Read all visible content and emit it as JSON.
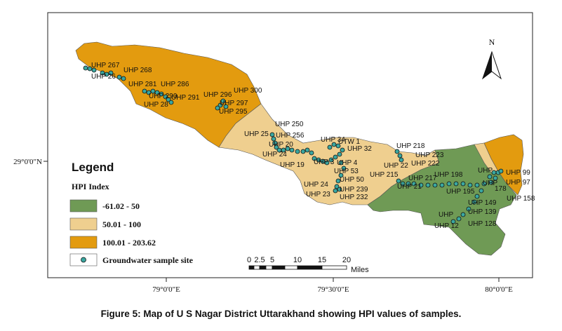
{
  "caption": "Figure 5: Map of U S Nagar District Uttarakhand showing HPI values of samples.",
  "axes": {
    "lat_label": "29°0'0\"N",
    "lon_labels": [
      "79°0'0\"E",
      "79°30'0\"E",
      "80°0'0\"E"
    ]
  },
  "north_arrow": {
    "label": "N"
  },
  "scale_bar": {
    "ticks": [
      "0",
      "2.5",
      "5",
      "10",
      "15",
      "20"
    ],
    "unit": "Miles"
  },
  "legend": {
    "title": "Legend",
    "subtitle": "HPI Index",
    "items": [
      {
        "label": "-61.02 - 50",
        "color": "#6f9a55"
      },
      {
        "label": "50.01 - 100",
        "color": "#efcf8f"
      },
      {
        "label": "100.01 - 203.62",
        "color": "#e39b0f"
      }
    ],
    "site_item": {
      "label": "Groundwater sample site"
    }
  },
  "colors": {
    "low": "#6f9a55",
    "mid": "#efcf8f",
    "high": "#e39b0f",
    "site": "#3aa7a0"
  },
  "site_labels": [
    "UHP 267",
    "UHP 26",
    "UHP 268",
    "UHP 281",
    "UHP 286",
    "UHP 290",
    "UHP 291",
    "UHP 28",
    "UHP 296",
    "UHP 300",
    "UHP 297",
    "UHP 295",
    "UHP 250",
    "UHP 25",
    "UHP 256",
    "UHP 20",
    "UHP 24",
    "UHP 19",
    "UHP 3",
    "UHP 34",
    "UTW 1",
    "UHP 32",
    "UHP 4",
    "UHP 53",
    "UHP 50",
    "UHP 24",
    "UHP 239",
    "UHP 23",
    "UHP 232",
    "UHP 218",
    "UHP 22",
    "UHP 223",
    "UHP 222",
    "UHP 215",
    "UHP 217",
    "UHP 21",
    "UHP 198",
    "UHP 195",
    "UHP 149",
    "UHP 139",
    "UHP",
    "UHP 128",
    "UHP 12",
    "UHP",
    "UHP 99",
    "UHP 97",
    "UHP",
    "178",
    "UHP 158"
  ]
}
